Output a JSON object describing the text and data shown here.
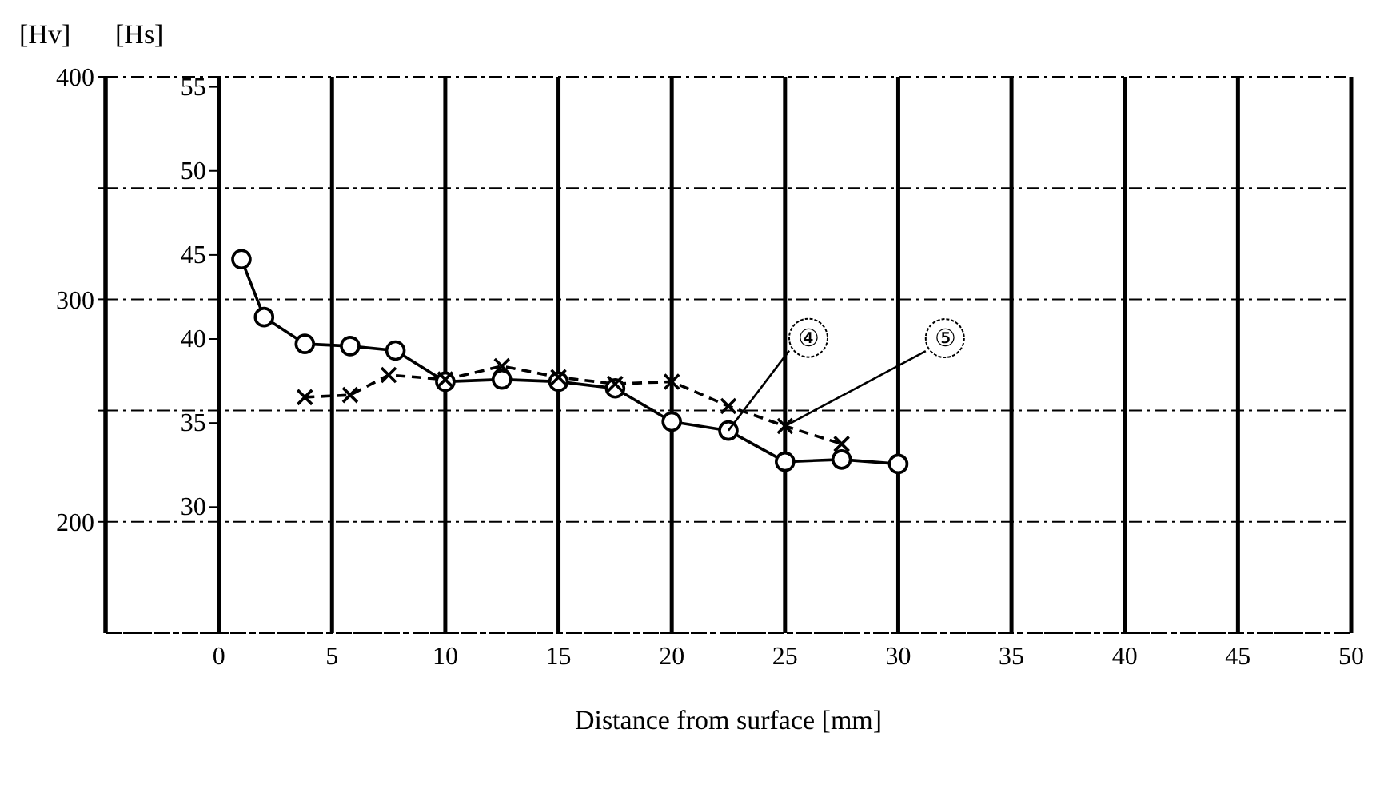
{
  "chart_data": {
    "type": "line",
    "xlabel": "Distance from surface [mm]",
    "ylabel": "[Hv]",
    "y2label": "[Hs]",
    "xlim": [
      -5,
      50
    ],
    "xticks": [
      0,
      5,
      10,
      15,
      20,
      25,
      30,
      35,
      40,
      45,
      50
    ],
    "ylim": [
      150,
      400
    ],
    "yticks": [
      {
        "value": 200,
        "label": "200"
      },
      {
        "value": 250,
        "label": null
      },
      {
        "value": 300,
        "label": "300"
      },
      {
        "value": 350,
        "label": null
      },
      {
        "value": 400,
        "label": "400"
      }
    ],
    "y2lim": [
      22.5,
      55.6
    ],
    "y2ticks": [
      30,
      35,
      40,
      45,
      50,
      55
    ],
    "grid": true,
    "series": [
      {
        "name": "④",
        "color": "#000000",
        "marker": "circle",
        "line_style": "solid",
        "x": [
          1,
          2,
          3.8,
          5.8,
          7.8,
          10,
          12.5,
          15,
          17.5,
          20,
          22.5,
          25,
          27.5,
          30
        ],
        "values": [
          318,
          292,
          280,
          279,
          277,
          263,
          264,
          263,
          260,
          245,
          241,
          227,
          228,
          226
        ]
      },
      {
        "name": "⑤",
        "color": "#000000",
        "marker": "cross",
        "line_style": "dashed",
        "x": [
          3.8,
          5.8,
          7.5,
          10,
          12.5,
          15,
          17.5,
          20,
          22.5,
          25,
          27.5
        ],
        "values": [
          256,
          257,
          266,
          264,
          270,
          265,
          262,
          263,
          252,
          243,
          235
        ]
      }
    ]
  }
}
